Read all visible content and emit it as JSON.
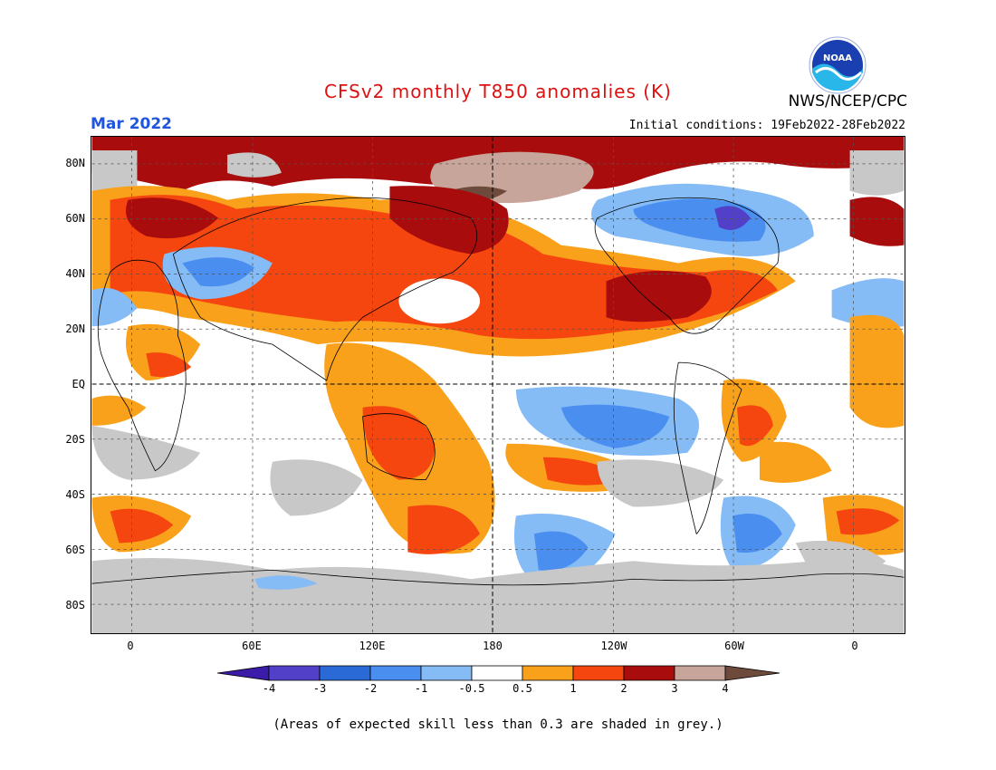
{
  "title": "CFSv2 monthly T850 anomalies (K)",
  "month": "Mar 2022",
  "agency": "NWS/NCEP/CPC",
  "initial_conditions": "Initial conditions: 19Feb2022-28Feb2022",
  "logo": {
    "text": "NOAA",
    "icon": "noaa-logo"
  },
  "lat_labels": [
    "80N",
    "60N",
    "40N",
    "20N",
    "EQ",
    "20S",
    "40S",
    "60S",
    "80S"
  ],
  "lon_labels": [
    "0",
    "60E",
    "120E",
    "180",
    "120W",
    "60W",
    "0"
  ],
  "colorbar": {
    "labels": [
      "-4",
      "-3",
      "-2",
      "-1",
      "-0.5",
      "0.5",
      "1",
      "2",
      "3",
      "4"
    ],
    "colors": [
      "#3a1ca8",
      "#5240c8",
      "#2a6ad6",
      "#4a8ef0",
      "#86bcf5",
      "#ffffff",
      "#f9a11b",
      "#f5460f",
      "#a80c0c",
      "#c8a59a",
      "#6e4a3c"
    ]
  },
  "footnote": "(Areas of expected skill less than 0.3 are shaded in grey.)",
  "colors": {
    "title": "#dd1111",
    "month": "#2255dd",
    "grey": "#c8c8c8"
  }
}
